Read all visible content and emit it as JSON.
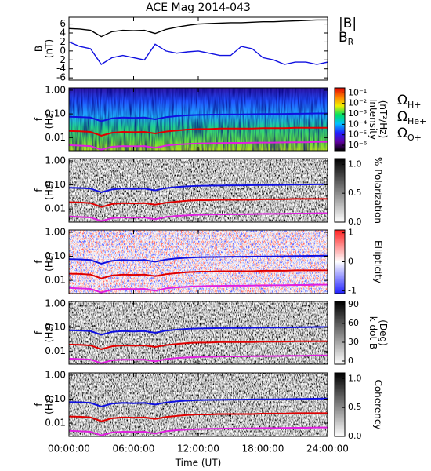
{
  "chart_data": [
    {
      "type": "line",
      "title": "ACE Mag 2014-043",
      "ylabel": [
        "B",
        "(nT)"
      ],
      "x": [
        0,
        1,
        2,
        3,
        4,
        5,
        6,
        7,
        8,
        9,
        10,
        11,
        12,
        13,
        14,
        15,
        16,
        17,
        18,
        19,
        20,
        21,
        22,
        23,
        24
      ],
      "xlim": [
        0,
        24
      ],
      "xticks": [
        {
          "value": 0,
          "label": "00:00:00"
        },
        {
          "value": 6,
          "label": "06:00:00"
        },
        {
          "value": 12,
          "label": "12:00:00"
        },
        {
          "value": 18,
          "label": "18:00:00"
        },
        {
          "value": 24,
          "label": "24:00:00"
        }
      ],
      "ylim": [
        -6.5,
        7.5
      ],
      "yticks": [
        6,
        4,
        2,
        0,
        -2,
        -4,
        -6
      ],
      "series": [
        {
          "name": "|B|",
          "color": "#000000",
          "values": [
            5.0,
            4.9,
            4.6,
            3.2,
            4.3,
            4.6,
            4.5,
            4.6,
            3.9,
            4.8,
            5.3,
            5.7,
            6.0,
            6.1,
            6.2,
            6.3,
            6.3,
            6.4,
            6.5,
            6.5,
            6.6,
            6.7,
            6.8,
            6.9,
            6.9
          ]
        },
        {
          "name": "B",
          "name_sub": "R",
          "color": "#1010e0",
          "values": [
            2.0,
            1.0,
            0.5,
            -3.0,
            -1.5,
            -1.0,
            -1.5,
            -2.0,
            1.5,
            0.0,
            -0.5,
            -0.2,
            0.0,
            -0.5,
            -1.0,
            -1.0,
            1.0,
            0.5,
            -1.5,
            -2.0,
            -3.0,
            -2.5,
            -2.5,
            -3.0,
            -2.5
          ]
        }
      ]
    },
    {
      "type": "spectrogram",
      "palette": "rainbow",
      "ylabel": [
        "f",
        "(Hz)"
      ],
      "ylog": true,
      "x": [
        0,
        1,
        2,
        3,
        4,
        5,
        6,
        7,
        8,
        9,
        10,
        11,
        12,
        13,
        14,
        15,
        16,
        17,
        18,
        19,
        20,
        21,
        22,
        23,
        24
      ],
      "xlim": [
        0,
        24
      ],
      "xticks": [
        {
          "value": 0,
          "label": "00:00:00"
        },
        {
          "value": 6,
          "label": "06:00:00"
        },
        {
          "value": 12,
          "label": "12:00:00"
        },
        {
          "value": 18,
          "label": "18:00:00"
        },
        {
          "value": 24,
          "label": "24:00:00"
        }
      ],
      "ylim": [
        0.0028,
        1.25
      ],
      "yticks": [
        {
          "value": 1,
          "label": "1.00"
        },
        {
          "value": 0.1,
          "label": "0.10"
        },
        {
          "value": 0.01,
          "label": "0.01"
        }
      ],
      "colorbar": {
        "label": [
          "Intensity",
          "(nT²/Hz)"
        ],
        "lim": [
          3e-07,
          0.3
        ],
        "log": true,
        "colors": [
          "#000000",
          "#6000a0",
          "#2020ff",
          "#00c0ff",
          "#00e060",
          "#f0f000",
          "#ff8000",
          "#e00000"
        ],
        "ticks": [
          {
            "value": 0.1,
            "label": "10⁻¹"
          },
          {
            "value": 0.01,
            "label": "10⁻²"
          },
          {
            "value": 0.001,
            "label": "10⁻³"
          },
          {
            "value": 0.0001,
            "label": "10⁻⁴"
          },
          {
            "value": 1e-05,
            "label": "10⁻⁵"
          },
          {
            "value": 1e-06,
            "label": "10⁻⁶"
          }
        ]
      },
      "series": [
        {
          "name": "Ω",
          "name_sub": "H+",
          "color": "#1010e0",
          "values": [
            0.076,
            0.074,
            0.07,
            0.049,
            0.065,
            0.07,
            0.068,
            0.07,
            0.059,
            0.073,
            0.081,
            0.087,
            0.091,
            0.093,
            0.094,
            0.096,
            0.096,
            0.097,
            0.099,
            0.099,
            0.1,
            0.102,
            0.103,
            0.105,
            0.105
          ]
        },
        {
          "name": "Ω",
          "name_sub": "He+",
          "color": "#e00000",
          "values": [
            0.019,
            0.0185,
            0.0175,
            0.012,
            0.016,
            0.0175,
            0.017,
            0.0175,
            0.015,
            0.018,
            0.02,
            0.022,
            0.023,
            0.023,
            0.024,
            0.024,
            0.024,
            0.024,
            0.025,
            0.025,
            0.025,
            0.026,
            0.026,
            0.026,
            0.026
          ]
        },
        {
          "name": "Ω",
          "name_sub": "O+",
          "color": "#e020e0",
          "values": [
            0.0048,
            0.0046,
            0.0044,
            0.0031,
            0.0041,
            0.0044,
            0.0043,
            0.0044,
            0.0037,
            0.0046,
            0.0051,
            0.0054,
            0.0057,
            0.0058,
            0.0059,
            0.006,
            0.006,
            0.0061,
            0.0062,
            0.0062,
            0.0063,
            0.0064,
            0.0064,
            0.0066,
            0.0066
          ]
        }
      ]
    },
    {
      "type": "spectrogram",
      "palette": "gray",
      "ylabel": [
        "f",
        "(Hz)"
      ],
      "ylog": true,
      "xlim": [
        0,
        24
      ],
      "xticks": [
        {
          "value": 0,
          "label": "00:00:00"
        },
        {
          "value": 6,
          "label": "06:00:00"
        },
        {
          "value": 12,
          "label": "12:00:00"
        },
        {
          "value": 18,
          "label": "18:00:00"
        },
        {
          "value": 24,
          "label": "24:00:00"
        }
      ],
      "ylim": [
        0.0028,
        1.25
      ],
      "yticks": [
        {
          "value": 1,
          "label": "1.00"
        },
        {
          "value": 0.1,
          "label": "0.10"
        },
        {
          "value": 0.01,
          "label": "0.01"
        }
      ],
      "colorbar": {
        "label": [
          "% Polarization"
        ],
        "lim": [
          0,
          1.1
        ],
        "colors": [
          "#ffffff",
          "#000000"
        ],
        "ticks": [
          {
            "value": 1,
            "label": "1.0"
          },
          {
            "value": 0.5,
            "label": "0.5"
          },
          {
            "value": 0,
            "label": "0.0"
          }
        ]
      }
    },
    {
      "type": "spectrogram",
      "palette": "redblue",
      "ylabel": [
        "f",
        "(Hz)"
      ],
      "ylog": true,
      "xlim": [
        0,
        24
      ],
      "xticks": [
        {
          "value": 0,
          "label": "00:00:00"
        },
        {
          "value": 6,
          "label": "06:00:00"
        },
        {
          "value": 12,
          "label": "12:00:00"
        },
        {
          "value": 18,
          "label": "18:00:00"
        },
        {
          "value": 24,
          "label": "24:00:00"
        }
      ],
      "ylim": [
        0.0028,
        1.25
      ],
      "yticks": [
        {
          "value": 1,
          "label": "1.00"
        },
        {
          "value": 0.1,
          "label": "0.10"
        },
        {
          "value": 0.01,
          "label": "0.01"
        }
      ],
      "colorbar": {
        "label": [
          "Ellipticity"
        ],
        "lim": [
          -1.1,
          1.1
        ],
        "colors": [
          "#2020ff",
          "#ffffff",
          "#ff2020"
        ],
        "ticks": [
          1,
          0,
          -1
        ]
      }
    },
    {
      "type": "spectrogram",
      "palette": "gray",
      "ylabel": [
        "f",
        "(Hz)"
      ],
      "ylog": true,
      "xlim": [
        0,
        24
      ],
      "xticks": [
        {
          "value": 0,
          "label": "00:00:00"
        },
        {
          "value": 6,
          "label": "06:00:00"
        },
        {
          "value": 12,
          "label": "12:00:00"
        },
        {
          "value": 18,
          "label": "18:00:00"
        },
        {
          "value": 24,
          "label": "24:00:00"
        }
      ],
      "ylim": [
        0.0028,
        1.25
      ],
      "yticks": [
        {
          "value": 1,
          "label": "1.00"
        },
        {
          "value": 0.1,
          "label": "0.10"
        },
        {
          "value": 0.01,
          "label": "0.01"
        }
      ],
      "colorbar": {
        "label": [
          "k dot B",
          "(Deg)"
        ],
        "lim": [
          -5,
          95
        ],
        "colors": [
          "#ffffff",
          "#000000"
        ],
        "ticks": [
          90,
          60,
          30,
          0
        ]
      }
    },
    {
      "type": "spectrogram",
      "palette": "gray",
      "ylabel": [
        "f",
        "(Hz)"
      ],
      "ylog": true,
      "xlim": [
        0,
        24
      ],
      "xticks": [
        {
          "value": 0,
          "label": "00:00:00"
        },
        {
          "value": 6,
          "label": "06:00:00"
        },
        {
          "value": 12,
          "label": "12:00:00"
        },
        {
          "value": 18,
          "label": "18:00:00"
        },
        {
          "value": 24,
          "label": "24:00:00"
        }
      ],
      "xlabel": "Time (UT)",
      "ylim": [
        0.0028,
        1.25
      ],
      "yticks": [
        {
          "value": 1,
          "label": "1.00"
        },
        {
          "value": 0.1,
          "label": "0.10"
        },
        {
          "value": 0.01,
          "label": "0.01"
        }
      ],
      "colorbar": {
        "label": [
          "Coherency"
        ],
        "lim": [
          0,
          1.1
        ],
        "colors": [
          "#ffffff",
          "#000000"
        ],
        "ticks": [
          {
            "value": 1,
            "label": "1.0"
          },
          {
            "value": 0.5,
            "label": "0.5"
          },
          {
            "value": 0,
            "label": "0.0"
          }
        ]
      }
    }
  ]
}
